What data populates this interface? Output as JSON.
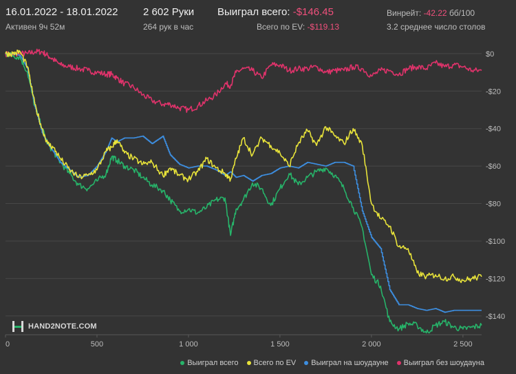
{
  "header": {
    "date_range": "16.01.2022 - 18.01.2022",
    "active": "Активен 9ч 52м",
    "hands": "2 602 Руки",
    "hands_per_hour": "264 рук в час",
    "won_label": "Выиграл всего:",
    "won_value": "-$146.45",
    "ev_label": "Всего по EV:",
    "ev_value": "-$119.13",
    "winrate_label": "Винрейт:",
    "winrate_value": "-42.22",
    "winrate_unit": "бб/100",
    "tables": "3.2 среднее число столов"
  },
  "logo": {
    "text": "HAND2NOTE.COM"
  },
  "colors": {
    "won": "#27b46a",
    "ev": "#e8e33a",
    "showdown": "#3d8ee0",
    "no_showdown": "#e0336b"
  },
  "chart_data": {
    "type": "line",
    "xlim": [
      0,
      2602
    ],
    "ylim": [
      -150,
      4
    ],
    "xticks": [
      0,
      500,
      1000,
      1500,
      2000,
      2500
    ],
    "xtick_labels": [
      "0",
      "500",
      "1 000",
      "1 500",
      "2 000",
      "2 500"
    ],
    "yticks": [
      0,
      -20,
      -40,
      -60,
      -80,
      -100,
      -120,
      -140
    ],
    "ytick_labels": [
      "$0",
      "-$20",
      "-$40",
      "-$60",
      "-$80",
      "-$100",
      "-$120",
      "-$140"
    ],
    "grid": true,
    "legend_position": "bottom-right",
    "series": [
      {
        "name": "Выиграл всего",
        "color_key": "won",
        "x": [
          0,
          40,
          80,
          120,
          160,
          200,
          230,
          260,
          300,
          350,
          400,
          450,
          500,
          550,
          580,
          610,
          650,
          700,
          750,
          800,
          860,
          900,
          950,
          1000,
          1050,
          1100,
          1150,
          1200,
          1230,
          1260,
          1300,
          1350,
          1400,
          1450,
          1500,
          1550,
          1600,
          1650,
          1700,
          1750,
          1800,
          1850,
          1900,
          1950,
          2000,
          2050,
          2100,
          2150,
          2200,
          2250,
          2300,
          2350,
          2400,
          2450,
          2500,
          2550,
          2602
        ],
        "values": [
          0,
          -1,
          -2,
          -10,
          -28,
          -40,
          -48,
          -52,
          -58,
          -64,
          -70,
          -72,
          -68,
          -64,
          -55,
          -57,
          -60,
          -62,
          -66,
          -70,
          -73,
          -78,
          -84,
          -83,
          -85,
          -82,
          -78,
          -77,
          -97,
          -83,
          -78,
          -69,
          -72,
          -81,
          -72,
          -64,
          -70,
          -66,
          -63,
          -61,
          -65,
          -72,
          -82,
          -93,
          -118,
          -124,
          -143,
          -147,
          -144,
          -145,
          -149,
          -145,
          -143,
          -146,
          -147,
          -146,
          -145
        ]
      },
      {
        "name": "Всего по EV",
        "color_key": "ev",
        "x": [
          0,
          40,
          80,
          120,
          160,
          200,
          230,
          260,
          300,
          350,
          400,
          450,
          500,
          550,
          580,
          610,
          650,
          700,
          750,
          800,
          860,
          900,
          950,
          1000,
          1050,
          1100,
          1150,
          1200,
          1230,
          1260,
          1300,
          1350,
          1400,
          1450,
          1500,
          1550,
          1600,
          1650,
          1700,
          1750,
          1800,
          1850,
          1900,
          1950,
          2000,
          2050,
          2100,
          2150,
          2200,
          2250,
          2300,
          2350,
          2400,
          2450,
          2500,
          2550,
          2602
        ],
        "values": [
          0,
          0,
          1,
          -7,
          -27,
          -40,
          -48,
          -50,
          -56,
          -62,
          -66,
          -65,
          -62,
          -52,
          -50,
          -46,
          -53,
          -56,
          -59,
          -58,
          -65,
          -61,
          -65,
          -67,
          -63,
          -56,
          -61,
          -64,
          -67,
          -56,
          -45,
          -54,
          -45,
          -49,
          -53,
          -60,
          -48,
          -41,
          -49,
          -39,
          -44,
          -48,
          -40,
          -49,
          -80,
          -88,
          -92,
          -103,
          -104,
          -117,
          -119,
          -118,
          -120,
          -119,
          -121,
          -120,
          -119
        ]
      },
      {
        "name": "Выиграл на шоудауне",
        "color_key": "showdown",
        "x": [
          0,
          40,
          80,
          120,
          160,
          200,
          230,
          260,
          300,
          350,
          400,
          450,
          500,
          550,
          580,
          610,
          650,
          700,
          750,
          800,
          860,
          900,
          950,
          1000,
          1050,
          1100,
          1150,
          1200,
          1230,
          1260,
          1300,
          1350,
          1400,
          1450,
          1500,
          1550,
          1600,
          1650,
          1700,
          1750,
          1800,
          1850,
          1900,
          1950,
          2000,
          2050,
          2100,
          2150,
          2200,
          2250,
          2300,
          2350,
          2400,
          2450,
          2500,
          2550,
          2602
        ],
        "values": [
          0,
          0,
          -1,
          -8,
          -28,
          -42,
          -48,
          -52,
          -58,
          -62,
          -66,
          -65,
          -60,
          -52,
          -45,
          -47,
          -45,
          -45,
          -44,
          -48,
          -44,
          -54,
          -59,
          -61,
          -60,
          -60,
          -62,
          -65,
          -63,
          -66,
          -65,
          -68,
          -65,
          -64,
          -61,
          -60,
          -61,
          -58,
          -59,
          -60,
          -58,
          -58,
          -60,
          -84,
          -98,
          -104,
          -126,
          -134,
          -134,
          -136,
          -137,
          -136,
          -138,
          -137,
          -137,
          -137,
          -137
        ]
      },
      {
        "name": "Выиграл без шоудауна",
        "color_key": "no_showdown",
        "x": [
          0,
          40,
          80,
          120,
          160,
          200,
          230,
          260,
          300,
          350,
          400,
          450,
          500,
          550,
          580,
          610,
          650,
          700,
          750,
          800,
          860,
          900,
          950,
          1000,
          1050,
          1100,
          1150,
          1200,
          1230,
          1260,
          1300,
          1350,
          1400,
          1450,
          1500,
          1550,
          1600,
          1650,
          1700,
          1750,
          1800,
          1850,
          1900,
          1950,
          2000,
          2050,
          2100,
          2150,
          2200,
          2250,
          2300,
          2350,
          2400,
          2450,
          2500,
          2550,
          2602
        ],
        "values": [
          0,
          -1,
          0,
          0,
          1,
          1,
          -1,
          -3,
          -6,
          -7,
          -8,
          -9,
          -10,
          -11,
          -11,
          -13,
          -16,
          -18,
          -22,
          -25,
          -27,
          -27,
          -29,
          -30,
          -28,
          -25,
          -22,
          -16,
          -17,
          -10,
          -8,
          -9,
          -13,
          -6,
          -6,
          -9,
          -8,
          -8,
          -7,
          -10,
          -9,
          -9,
          -7,
          -8,
          -12,
          -9,
          -9,
          -11,
          -8,
          -7,
          -8,
          -5,
          -7,
          -6,
          -7,
          -9,
          -9
        ]
      }
    ]
  }
}
